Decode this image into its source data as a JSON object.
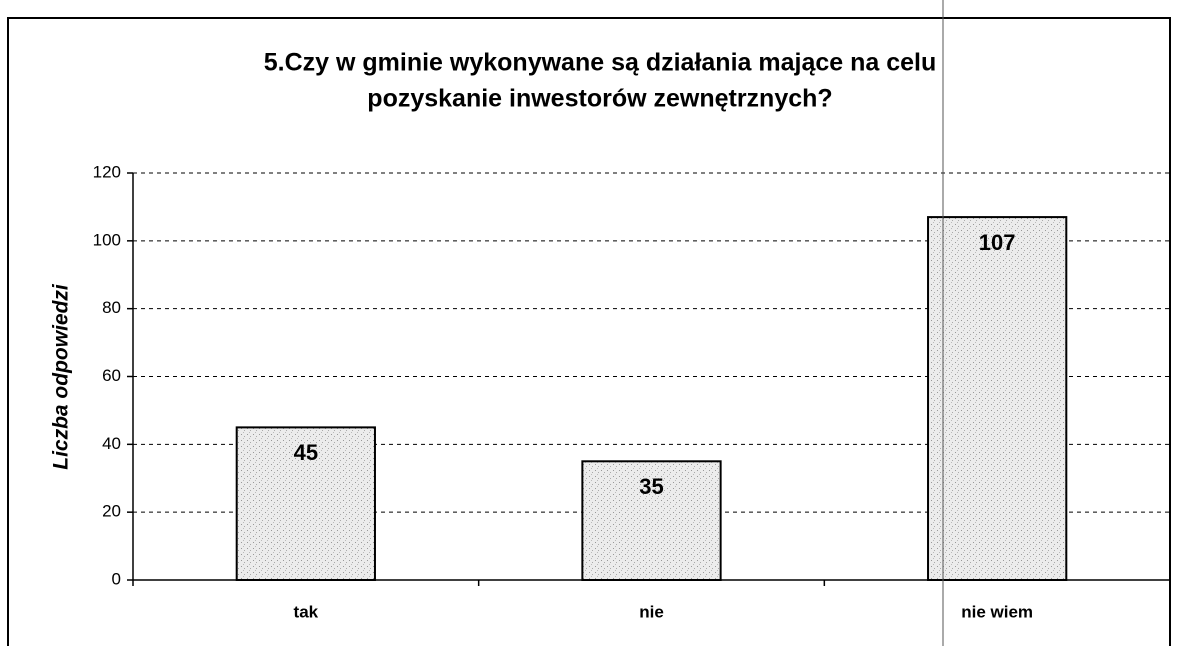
{
  "chart_data": {
    "type": "bar",
    "title": [
      "5.Czy w gminie wykonywane są działania mające na celu",
      "pozyskanie inwestorów zewnętrznych?"
    ],
    "y_label": "Liczba odpowiedzi",
    "categories": [
      "tak",
      "nie",
      "nie wiem"
    ],
    "values": [
      45,
      35,
      107
    ],
    "color": "#e4e4e4",
    "ylim": [
      0,
      120
    ],
    "yticks": [
      0,
      20,
      40,
      60,
      80,
      100,
      120
    ],
    "grid": true
  }
}
